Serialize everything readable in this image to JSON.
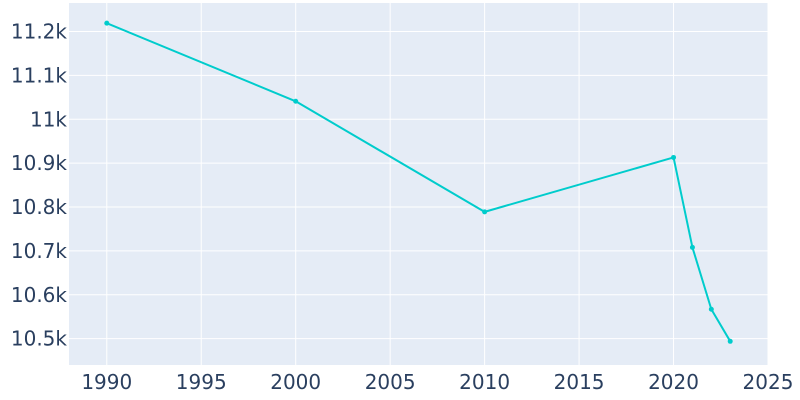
{
  "chart_data": {
    "type": "line",
    "title": "",
    "xlabel": "",
    "ylabel": "",
    "xlim": [
      1988,
      2025
    ],
    "ylim": [
      10440,
      11265
    ],
    "x_ticks": [
      1990,
      1995,
      2000,
      2005,
      2010,
      2015,
      2020,
      2025
    ],
    "x_tick_labels": [
      "1990",
      "1995",
      "2000",
      "2005",
      "2010",
      "2015",
      "2020",
      "2025"
    ],
    "y_ticks": [
      10500,
      10600,
      10700,
      10800,
      10900,
      11000,
      11100,
      11200
    ],
    "y_tick_labels": [
      "10.5k",
      "10.6k",
      "10.7k",
      "10.8k",
      "10.9k",
      "11k",
      "11.1k",
      "11.2k"
    ],
    "grid": true,
    "legend": "none",
    "colors": {
      "line": "#00cccc",
      "plot_bg": "#e5ecf6",
      "grid": "#ffffff",
      "text": "#2a3f5f"
    },
    "series": [
      {
        "x": [
          1990,
          2000,
          2010,
          2020,
          2021,
          2022,
          2023
        ],
        "y": [
          11219,
          11041,
          10789,
          10913,
          10708,
          10567,
          10494
        ]
      }
    ]
  }
}
